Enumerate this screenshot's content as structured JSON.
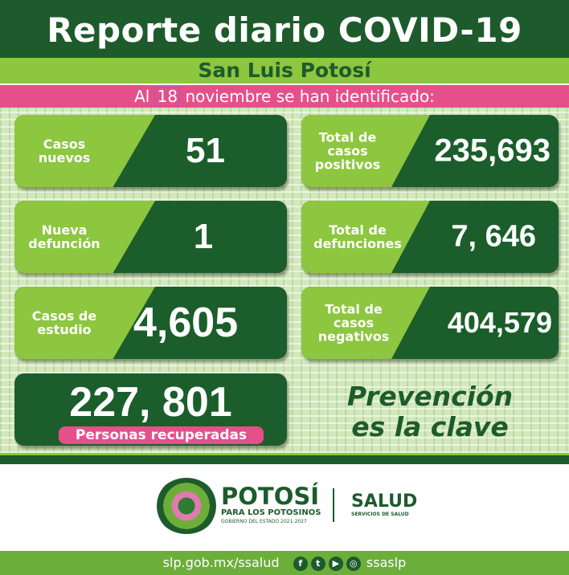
{
  "header": {
    "title": "Reporte diario COVID-19",
    "subtitle": "San Luis Potosí"
  },
  "date_line": {
    "prefix": "Al",
    "day": "18",
    "suffix": "noviembre se han identificado:"
  },
  "stats": {
    "casos_nuevos": {
      "label": "Casos nuevos",
      "value": "51"
    },
    "total_positivos": {
      "label": "Total de casos positivos",
      "value": "235,693"
    },
    "nueva_defuncion": {
      "label": "Nueva defunción",
      "value": "1"
    },
    "total_defunciones": {
      "label": "Total de defunciones",
      "value": "7, 646"
    },
    "casos_estudio": {
      "label": "Casos de estudio",
      "value": "4,605"
    },
    "total_negativos": {
      "label": "Total de casos negativos",
      "value": "404,579"
    },
    "recuperadas": {
      "label": "Personas recuperadas",
      "value": "227, 801"
    }
  },
  "slogan": {
    "line1": "Prevención",
    "line2": "es la clave"
  },
  "logos": {
    "potosi": "POTOSÍ",
    "potosi_sub": "PARA LOS POTOSINOS",
    "gobierno": "GOBIERNO DEL ESTADO 2021-2027",
    "salud": "SALUD",
    "salud_sub": "SERVICIOS DE SALUD"
  },
  "footer": {
    "url": "slp.gob.mx/ssalud",
    "handle": "ssaslp",
    "icons": [
      "facebook-icon",
      "twitter-icon",
      "youtube-icon",
      "instagram-icon"
    ]
  },
  "colors": {
    "dark_green": "#1e5b2c",
    "lime": "#8dc63f",
    "pink": "#e5508a"
  }
}
